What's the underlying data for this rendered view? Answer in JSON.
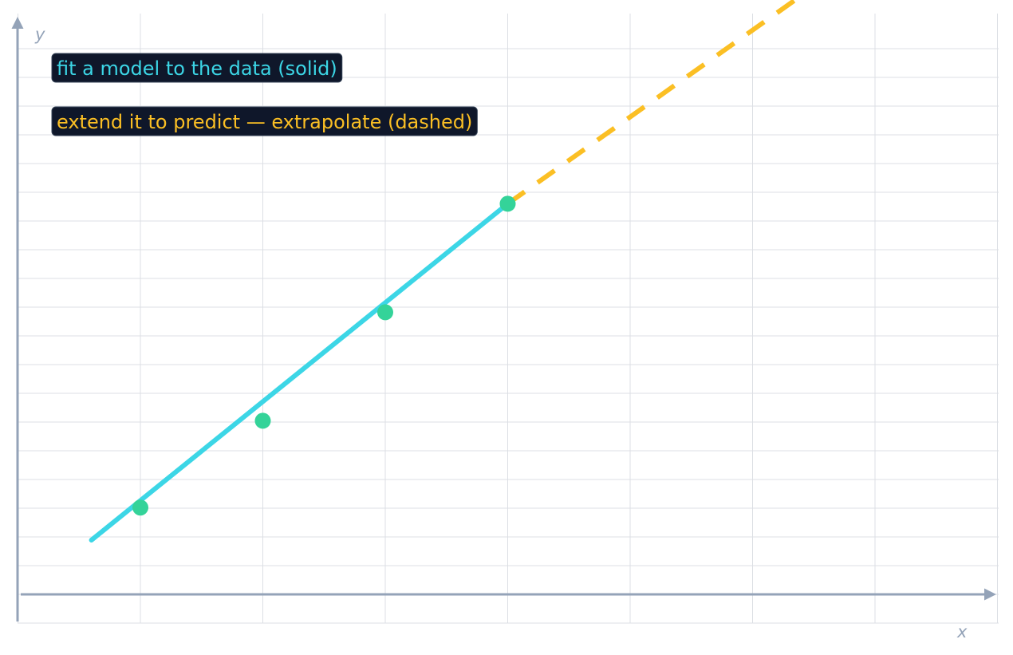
{
  "chart_data": {
    "type": "line",
    "title": "",
    "xlabel": "x",
    "ylabel": "y",
    "xlim": [
      -1,
      7
    ],
    "ylim": [
      -0.2,
      4.0
    ],
    "grid": true,
    "series": [
      {
        "role": "fit",
        "style": "solid",
        "color": "#3cd6e6",
        "x": [
          -0.4,
          3.0
        ],
        "y": [
          0.25,
          1.8
        ]
      },
      {
        "role": "extrapolation",
        "style": "dashed",
        "color": "#fbbf24",
        "x": [
          3.0,
          6.0
        ],
        "y": [
          1.8,
          3.0
        ]
      }
    ],
    "points": {
      "color": "#34d399",
      "x": [
        0,
        1,
        2,
        3
      ],
      "y": [
        0.4,
        0.8,
        1.3,
        1.8
      ]
    },
    "annotations": [
      {
        "text": "fit a model to the data (solid)",
        "color": "#3cd6e6",
        "position": "top-left"
      },
      {
        "text": "extend it to predict — extrapolate (dashed)",
        "color": "#fbbf24",
        "position": "top-left"
      }
    ]
  },
  "colors": {
    "axis": "#94a3b8",
    "grid": "#dcdfe4",
    "note_background": "#0f172a",
    "note_border": "#334155"
  }
}
